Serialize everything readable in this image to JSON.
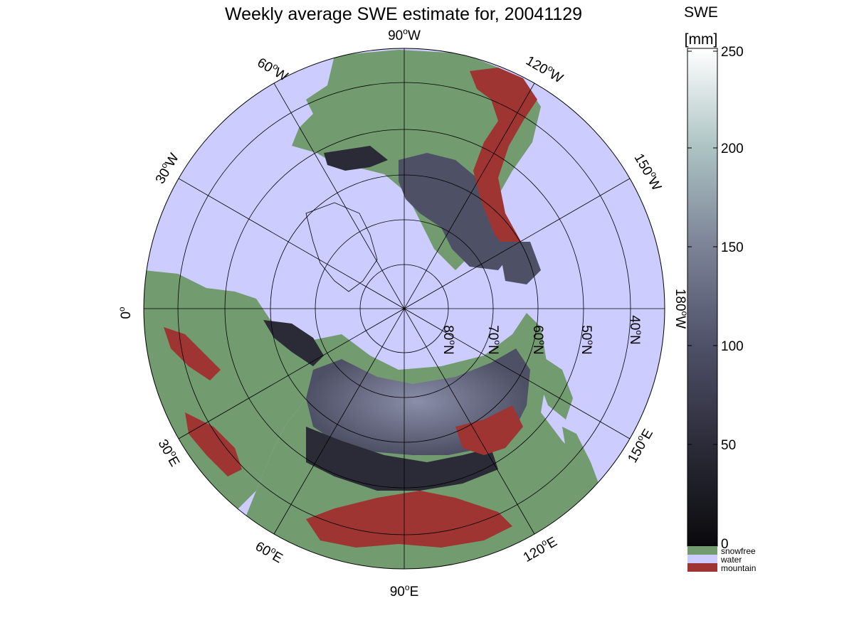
{
  "title": "Weekly average SWE estimate for, 20041129",
  "colorbar": {
    "label": "SWE",
    "unit": "[mm]",
    "ticks": [
      "0",
      "50",
      "100",
      "150",
      "200",
      "250"
    ],
    "range_mm": [
      0,
      250
    ],
    "colors": {
      "low": "#0a0a0d",
      "mid": "#6a6f86",
      "high": "#ffffff"
    }
  },
  "legend": [
    {
      "label": "snowfree",
      "color": "#729b6f"
    },
    {
      "label": "water",
      "color": "#ccccff"
    },
    {
      "label": "mountain",
      "color": "#9e3532"
    }
  ],
  "longitude_labels": {
    "lon_90W": "90",
    "lon_60W": "60",
    "lon_30W": "30",
    "lon_0": "0",
    "lon_30E": "30",
    "lon_60E": "60",
    "lon_90E": "90",
    "lon_120E": "120",
    "lon_150E": "150",
    "lon_180W": "180",
    "lon_150W": "150",
    "lon_120W": "120"
  },
  "latitude_labels": {
    "lat_80": "80",
    "lat_70": "70",
    "lat_60": "60",
    "lat_50": "50",
    "lat_40": "40"
  },
  "map_colors": {
    "ocean": "#ccccff",
    "land": "#729b6f",
    "mountain": "#9e3532",
    "snow_dark": "#2a2b36",
    "snow_mid": "#4e5065",
    "snow_light": "#8a8ea8",
    "grid": "#000000"
  }
}
